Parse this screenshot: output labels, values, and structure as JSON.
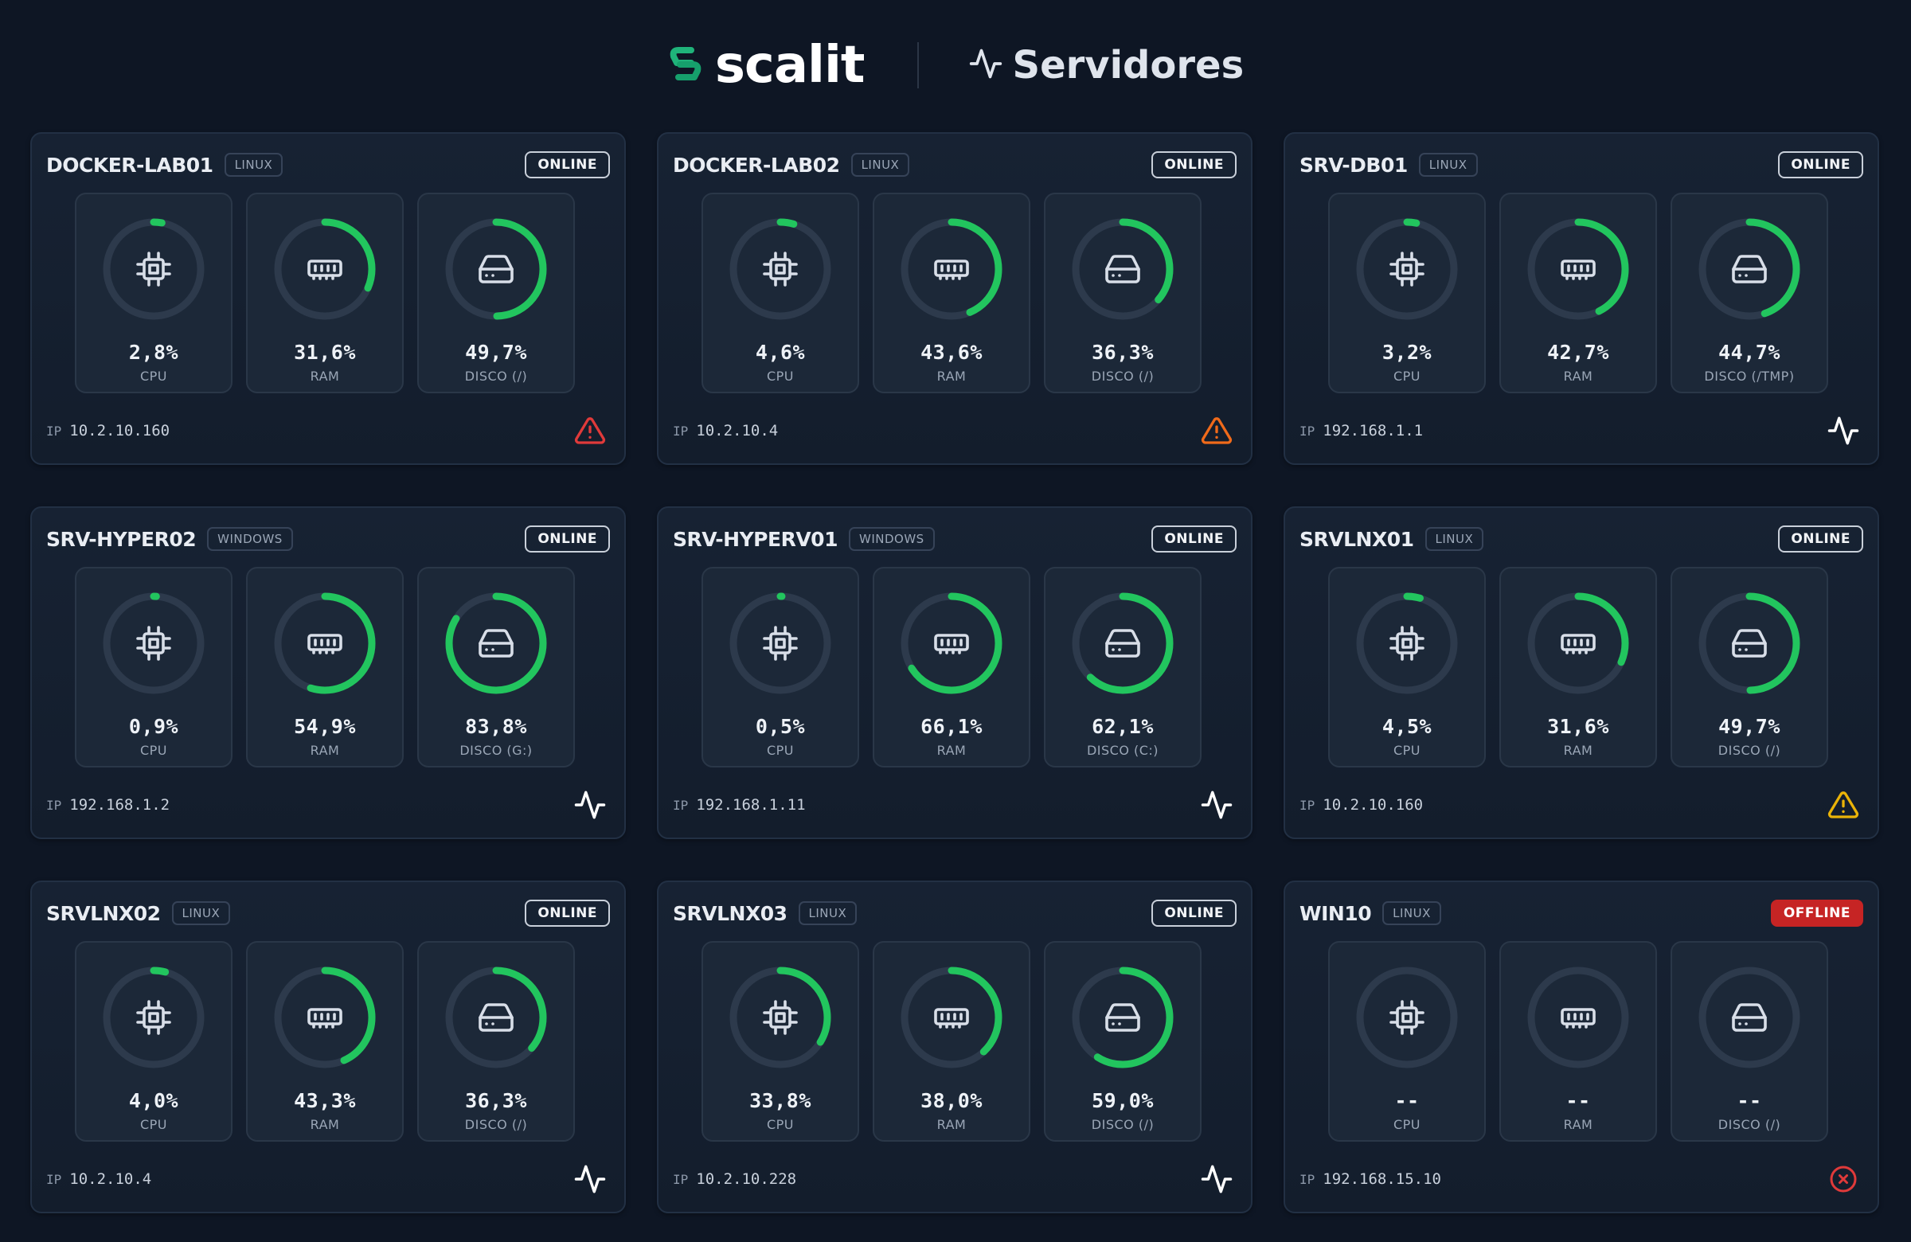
{
  "header": {
    "brand": "scalit",
    "title": "Servidores",
    "icons": {
      "brand": "scalit-logo-icon",
      "title": "activity-pulse-icon"
    }
  },
  "colors": {
    "gauge_active": "#22c55e",
    "gauge_track": "#2d3a4c",
    "alert_critical": "#e03a3a",
    "alert_high": "#f06a1a",
    "alert_warning": "#eab308",
    "offline_badge": "#c62424"
  },
  "metric_icons": {
    "CPU": "cpu-chip-icon",
    "RAM": "memory-module-icon",
    "DISCO": "hard-drive-icon"
  },
  "servers": [
    {
      "name": "DOCKER-LAB01",
      "os": "LINUX",
      "status": "ONLINE",
      "ip_label": "IP",
      "ip": "10.2.10.160",
      "foot_icon": "alert-triangle-icon",
      "foot_color": "#e03a3a",
      "metrics": [
        {
          "value": "2,8%",
          "label": "CPU",
          "pct": 2.8
        },
        {
          "value": "31,6%",
          "label": "RAM",
          "pct": 31.6
        },
        {
          "value": "49,7%",
          "label": "DISCO (/)",
          "pct": 49.7
        }
      ]
    },
    {
      "name": "DOCKER-LAB02",
      "os": "LINUX",
      "status": "ONLINE",
      "ip_label": "IP",
      "ip": "10.2.10.4",
      "foot_icon": "alert-triangle-icon",
      "foot_color": "#f06a1a",
      "metrics": [
        {
          "value": "4,6%",
          "label": "CPU",
          "pct": 4.6
        },
        {
          "value": "43,6%",
          "label": "RAM",
          "pct": 43.6
        },
        {
          "value": "36,3%",
          "label": "DISCO (/)",
          "pct": 36.3
        }
      ]
    },
    {
      "name": "SRV-DB01",
      "os": "LINUX",
      "status": "ONLINE",
      "ip_label": "IP",
      "ip": "192.168.1.1",
      "foot_icon": "activity-pulse-icon",
      "foot_color": "#ffffff",
      "metrics": [
        {
          "value": "3,2%",
          "label": "CPU",
          "pct": 3.2
        },
        {
          "value": "42,7%",
          "label": "RAM",
          "pct": 42.7
        },
        {
          "value": "44,7%",
          "label": "DISCO (/TMP)",
          "pct": 44.7
        }
      ]
    },
    {
      "name": "SRV-HYPER02",
      "os": "WINDOWS",
      "status": "ONLINE",
      "ip_label": "IP",
      "ip": "192.168.1.2",
      "foot_icon": "activity-pulse-icon",
      "foot_color": "#ffffff",
      "metrics": [
        {
          "value": "0,9%",
          "label": "CPU",
          "pct": 0.9
        },
        {
          "value": "54,9%",
          "label": "RAM",
          "pct": 54.9
        },
        {
          "value": "83,8%",
          "label": "DISCO (G:)",
          "pct": 83.8
        }
      ]
    },
    {
      "name": "SRV-HYPERV01",
      "os": "WINDOWS",
      "status": "ONLINE",
      "ip_label": "IP",
      "ip": "192.168.1.11",
      "foot_icon": "activity-pulse-icon",
      "foot_color": "#ffffff",
      "metrics": [
        {
          "value": "0,5%",
          "label": "CPU",
          "pct": 0.5
        },
        {
          "value": "66,1%",
          "label": "RAM",
          "pct": 66.1
        },
        {
          "value": "62,1%",
          "label": "DISCO (C:)",
          "pct": 62.1
        }
      ]
    },
    {
      "name": "SRVLNX01",
      "os": "LINUX",
      "status": "ONLINE",
      "ip_label": "IP",
      "ip": "10.2.10.160",
      "foot_icon": "alert-triangle-icon",
      "foot_color": "#eab308",
      "metrics": [
        {
          "value": "4,5%",
          "label": "CPU",
          "pct": 4.5
        },
        {
          "value": "31,6%",
          "label": "RAM",
          "pct": 31.6
        },
        {
          "value": "49,7%",
          "label": "DISCO (/)",
          "pct": 49.7
        }
      ]
    },
    {
      "name": "SRVLNX02",
      "os": "LINUX",
      "status": "ONLINE",
      "ip_label": "IP",
      "ip": "10.2.10.4",
      "foot_icon": "activity-pulse-icon",
      "foot_color": "#ffffff",
      "metrics": [
        {
          "value": "4,0%",
          "label": "CPU",
          "pct": 4.0
        },
        {
          "value": "43,3%",
          "label": "RAM",
          "pct": 43.3
        },
        {
          "value": "36,3%",
          "label": "DISCO (/)",
          "pct": 36.3
        }
      ]
    },
    {
      "name": "SRVLNX03",
      "os": "LINUX",
      "status": "ONLINE",
      "ip_label": "IP",
      "ip": "10.2.10.228",
      "foot_icon": "activity-pulse-icon",
      "foot_color": "#ffffff",
      "metrics": [
        {
          "value": "33,8%",
          "label": "CPU",
          "pct": 33.8
        },
        {
          "value": "38,0%",
          "label": "RAM",
          "pct": 38.0
        },
        {
          "value": "59,0%",
          "label": "DISCO (/)",
          "pct": 59.0
        }
      ]
    },
    {
      "name": "WIN10",
      "os": "LINUX",
      "status": "OFFLINE",
      "ip_label": "IP",
      "ip": "192.168.15.10",
      "foot_icon": "offline-x-circle-icon",
      "foot_color": "#e03a3a",
      "metrics": [
        {
          "value": "--",
          "label": "CPU",
          "pct": 0
        },
        {
          "value": "--",
          "label": "RAM",
          "pct": 0
        },
        {
          "value": "--",
          "label": "DISCO (/)",
          "pct": 0
        }
      ]
    }
  ]
}
